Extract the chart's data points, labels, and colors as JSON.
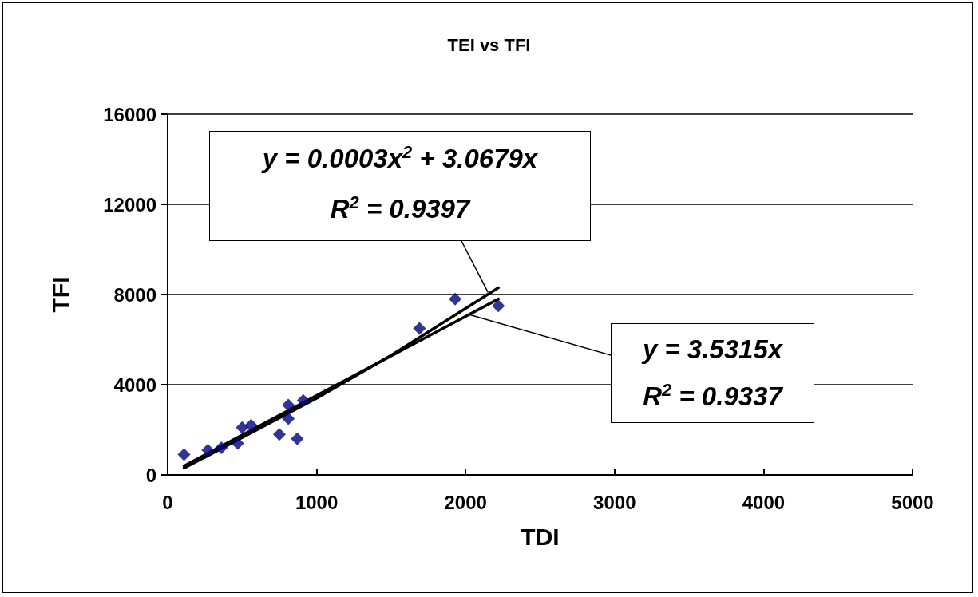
{
  "chart_data": {
    "type": "scatter",
    "title": "TEI vs TFI",
    "xlabel": "TDI",
    "ylabel": "TFI",
    "xlim": [
      0,
      5000
    ],
    "xticks": [
      0,
      1000,
      2000,
      3000,
      4000,
      5000
    ],
    "ylim": [
      0,
      16000
    ],
    "yticks": [
      0,
      4000,
      8000,
      12000,
      16000
    ],
    "grid": "y",
    "line_style": "solid",
    "series": [
      {
        "color": "#000080",
        "marker": "diamond",
        "x": [
          110,
          270,
          360,
          470,
          500,
          560,
          750,
          810,
          810,
          870,
          910,
          1690,
          1930,
          2220
        ],
        "values": [
          900,
          1100,
          1200,
          1400,
          2100,
          2200,
          1800,
          3100,
          2500,
          1600,
          3300,
          6500,
          7800,
          7500
        ]
      },
      {
        "type": "line",
        "color": "#000000",
        "marker": "none",
        "x": [
          110,
          2220
        ],
        "values": [
          400,
          7800
        ]
      },
      {
        "type": "line",
        "color": "#000000",
        "marker": "none",
        "x": [
          110,
          1000,
          1500,
          2220
        ],
        "values": [
          300,
          3400,
          5300,
          8300
        ]
      }
    ],
    "annotations": [
      "y = 0.0003x$^{2}$ + 3.0679x",
      {
        "text": "R$^{2}$ = 0.9397",
        "x": 2150,
        "y": 8100
      },
      {
        "text": "y = 3.5315x",
        "x": 2030,
        "y": 7100
      },
      "R$^{2}$ = 0.9337"
    ]
  }
}
